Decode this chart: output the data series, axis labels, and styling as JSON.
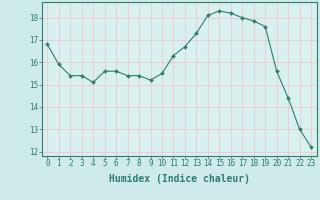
{
  "x": [
    0,
    1,
    2,
    3,
    4,
    5,
    6,
    7,
    8,
    9,
    10,
    11,
    12,
    13,
    14,
    15,
    16,
    17,
    18,
    19,
    20,
    21,
    22,
    23
  ],
  "y": [
    16.8,
    15.9,
    15.4,
    15.4,
    15.1,
    15.6,
    15.6,
    15.4,
    15.4,
    15.2,
    15.5,
    16.3,
    16.7,
    17.3,
    18.1,
    18.3,
    18.2,
    18.0,
    17.85,
    17.6,
    15.6,
    14.4,
    13.0,
    12.2
  ],
  "line_color": "#2e7d6e",
  "marker": "D",
  "marker_size": 2.0,
  "line_width": 0.8,
  "xlabel": "Humidex (Indice chaleur)",
  "xlabel_fontsize": 7,
  "ylim": [
    11.8,
    18.7
  ],
  "xlim": [
    -0.5,
    23.5
  ],
  "yticks": [
    12,
    13,
    14,
    15,
    16,
    17,
    18
  ],
  "xticks": [
    0,
    1,
    2,
    3,
    4,
    5,
    6,
    7,
    8,
    9,
    10,
    11,
    12,
    13,
    14,
    15,
    16,
    17,
    18,
    19,
    20,
    21,
    22,
    23
  ],
  "bg_color": "#ceeaea",
  "plot_bg_color": "#d8f0f0",
  "grid_color": "#f0c8c8",
  "tick_fontsize": 5.5,
  "tick_color": "#2e7d6e",
  "spine_color": "#2e7d6e"
}
